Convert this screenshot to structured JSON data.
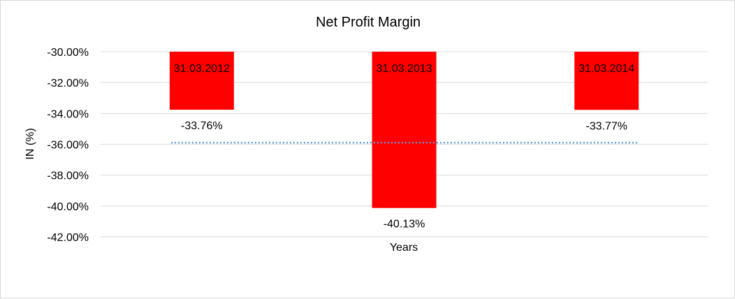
{
  "chart_data": {
    "type": "bar",
    "title": "Net Profit Margin",
    "xlabel": "Years",
    "ylabel": "IN (%)",
    "categories": [
      "31.03.2012",
      "31.03.2013",
      "31.03.2014"
    ],
    "values": [
      -33.76,
      -40.13,
      -33.77
    ],
    "data_labels": [
      "-33.76%",
      "-40.13%",
      "-33.77%"
    ],
    "ylim": [
      -42,
      -30
    ],
    "yticks": [
      -30,
      -32,
      -34,
      -36,
      -38,
      -40,
      -42
    ],
    "ytick_labels": [
      "-30.00%",
      "-32.00%",
      "-34.00%",
      "-36.00%",
      "-38.00%",
      "-40.00%",
      "-42.00%"
    ],
    "trendline": {
      "style": "dotted",
      "values": [
        -35.9,
        -35.9,
        -35.9
      ]
    },
    "grid": true,
    "legend": "none",
    "colors": {
      "bar": "#ff0000",
      "trendline": "#5b9bd5",
      "grid": "#d9d9d9"
    }
  }
}
